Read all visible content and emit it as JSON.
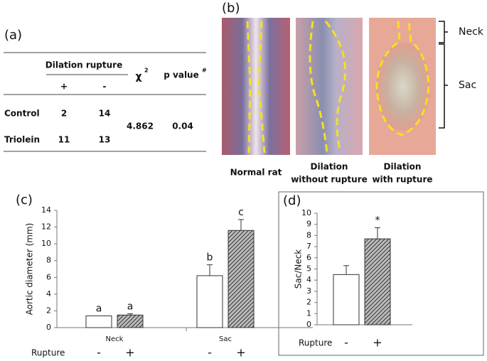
{
  "table": {
    "panel_label": "(a)",
    "group_header": "Dilation rupture",
    "subheaders": [
      "+",
      "-"
    ],
    "chi_header": {
      "symbol": "χ",
      "superscript": "2"
    },
    "p_header": {
      "text": "p value",
      "superscript": "#"
    },
    "rows": [
      [
        "Control",
        "2",
        "14"
      ],
      [
        "Triolein",
        "11",
        "13"
      ]
    ],
    "chi2": "4.862",
    "p_value": "0.04"
  },
  "photos": {
    "panel_label": "(b)",
    "captions": [
      [
        "Normal rat"
      ],
      [
        "Dilation",
        "without rupture"
      ],
      [
        "Dilation",
        "with rupture"
      ]
    ],
    "brackets": [
      "Neck",
      "Sac"
    ]
  },
  "chart_data": [
    {
      "type": "bar",
      "panel_label": "(c)",
      "y_label": "Aortic diameter (mm)",
      "x_label": "Rupture",
      "categories": [
        "Neck",
        "Sac"
      ],
      "ylim": [
        0,
        14
      ],
      "yticks": [
        0,
        2,
        4,
        6,
        8,
        10,
        12,
        14
      ],
      "series": [
        {
          "name": "-",
          "color": "#ffffff",
          "values": [
            1.4,
            6.2
          ],
          "errors": [
            0,
            1.3
          ],
          "labels": [
            "a",
            "b"
          ]
        },
        {
          "name": "+",
          "color": "#555555",
          "pattern": "hatch",
          "values": [
            1.5,
            11.6
          ],
          "errors": [
            0.15,
            1.3
          ],
          "labels": [
            "a",
            "c"
          ]
        }
      ]
    },
    {
      "type": "bar",
      "panel_label": "(d)",
      "y_label": "Sac/Neck",
      "x_label": "Rupture",
      "categories": [
        null
      ],
      "ylim": [
        0,
        10
      ],
      "yticks": [
        0,
        1,
        2,
        3,
        4,
        5,
        6,
        7,
        8,
        9,
        10
      ],
      "series": [
        {
          "name": "-",
          "color": "#ffffff",
          "values": [
            4.5
          ],
          "errors": [
            0.8
          ],
          "labels": [
            null
          ]
        },
        {
          "name": "+",
          "color": "#555555",
          "pattern": "hatch",
          "values": [
            7.7
          ],
          "errors": [
            1.0
          ],
          "labels": [
            "*"
          ]
        }
      ]
    }
  ]
}
